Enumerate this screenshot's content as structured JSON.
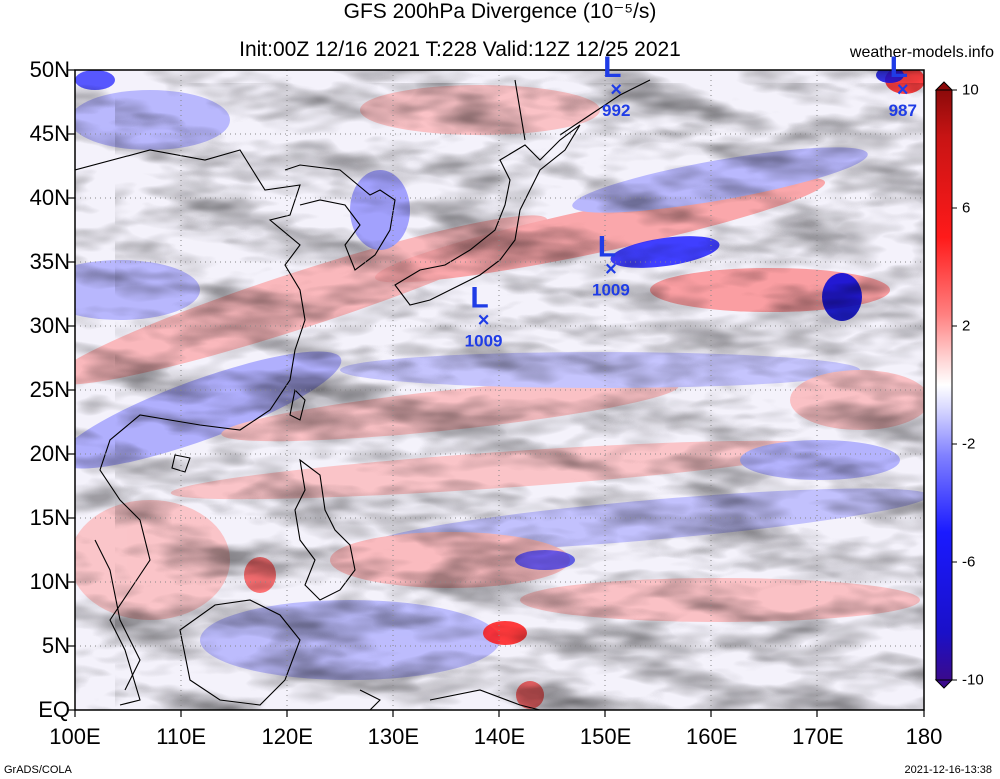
{
  "title": {
    "line1": "GFS 200hPa Divergence (10⁻⁵/s)",
    "line2": "Init:00Z 12/16 2021 T:228 Valid:12Z 12/25 2021"
  },
  "source": "weather-models.info",
  "footer": {
    "left": "GrADS/COLA",
    "right": "2021-12-16-13:38"
  },
  "latitude_labels": [
    "50N",
    "45N",
    "40N",
    "35N",
    "30N",
    "25N",
    "20N",
    "15N",
    "10N",
    "5N",
    "EQ"
  ],
  "longitude_labels": [
    "100E",
    "110E",
    "120E",
    "130E",
    "140E",
    "150E",
    "160E",
    "170E",
    "180"
  ],
  "colorbar": {
    "labels": [
      "10",
      "6",
      "2",
      "-2",
      "-6",
      "-10"
    ],
    "min": -10,
    "max": 10,
    "colors": {
      "high": "#ff0000",
      "low": "#0000ff",
      "ends_low": "#3a0a8c",
      "ends_high": "#8c0a0a"
    }
  },
  "pressure_systems": [
    {
      "type": "L",
      "value": "992",
      "lon": 151,
      "lat": 48.5
    },
    {
      "type": "L",
      "value": "987",
      "lon": 178,
      "lat": 48.5
    },
    {
      "type": "L",
      "value": "1009",
      "lon": 150.5,
      "lat": 34.5
    },
    {
      "type": "L",
      "value": "1009",
      "lon": 138.5,
      "lat": 30.5
    }
  ]
}
